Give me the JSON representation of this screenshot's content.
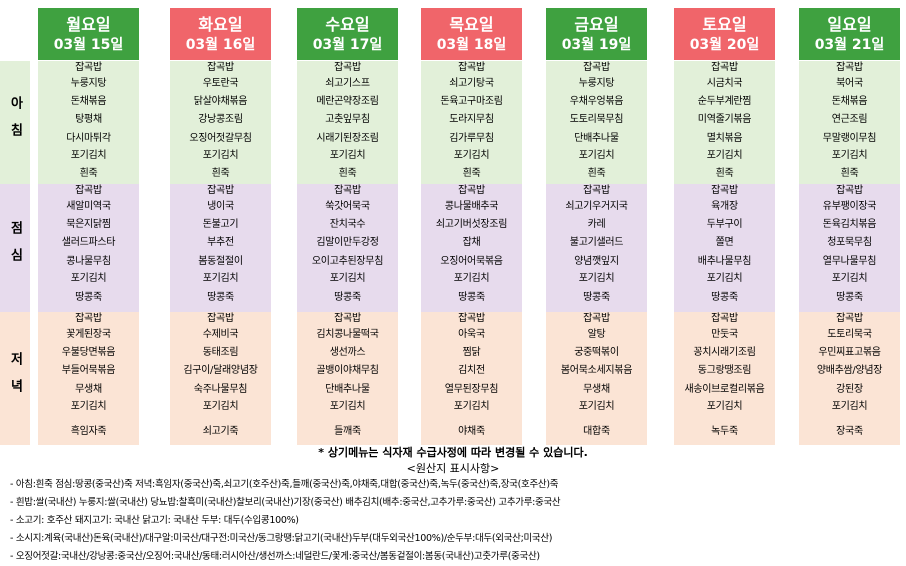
{
  "meal_labels": {
    "breakfast": "아침",
    "lunch": "점심",
    "dinner": "저녁"
  },
  "days": [
    {
      "name": "월요일",
      "date": "03월 15일",
      "header_color": "#3fa140",
      "breakfast": [
        "잡곡밥",
        "누룽지탕",
        "돈채볶음",
        "탕평채",
        "다시마튀각",
        "포기김치",
        "흰죽"
      ],
      "lunch": [
        "잡곡밥",
        "새알미역국",
        "묵은지닭찜",
        "샐러드파스타",
        "콩나물무침",
        "포기김치",
        "땅콩죽"
      ],
      "dinner": [
        "잡곡밥",
        "꽃게된장국",
        "우불당면볶음",
        "부들어묵볶음",
        "무생채",
        "포기김치",
        "흑임자죽"
      ]
    },
    {
      "name": "화요일",
      "date": "03월 16일",
      "header_color": "#f0656a",
      "breakfast": [
        "잡곡밥",
        "우토란국",
        "닭살야채볶음",
        "강낭콩조림",
        "오징어젓갈무침",
        "포기김치",
        "흰죽"
      ],
      "lunch": [
        "잡곡밥",
        "냉이국",
        "돈불고기",
        "부추전",
        "봄동절절이",
        "포기김치",
        "땅콩죽"
      ],
      "dinner": [
        "잡곡밥",
        "수제비국",
        "동태조림",
        "김구이/달래양념장",
        "숙주나물무침",
        "포기김치",
        "쇠고기죽"
      ]
    },
    {
      "name": "수요일",
      "date": "03월 17일",
      "header_color": "#3fa140",
      "breakfast": [
        "잡곡밥",
        "쇠고기스프",
        "메란곤약장조림",
        "고춧잎무침",
        "시래기된장조림",
        "포기김치",
        "흰죽"
      ],
      "lunch": [
        "잡곡밥",
        "쑥갓어묵국",
        "잔치국수",
        "김말이만두강정",
        "오이고추된장무침",
        "포기김치",
        "땅콩죽"
      ],
      "dinner": [
        "잡곡밥",
        "김치콩나물떡국",
        "생선까스",
        "골뱅이야채무침",
        "단배추나물",
        "포기김치",
        "들깨죽"
      ]
    },
    {
      "name": "목요일",
      "date": "03월 18일",
      "header_color": "#f0656a",
      "breakfast": [
        "잡곡밥",
        "쇠고기탕국",
        "돈육고구마조림",
        "도라지무침",
        "김가루무침",
        "포기김치",
        "흰죽"
      ],
      "lunch": [
        "잡곡밥",
        "콩나물배추국",
        "쇠고기버섯장조림",
        "잡채",
        "오징어어묵볶음",
        "포기김치",
        "땅콩죽"
      ],
      "dinner": [
        "잡곡밥",
        "아욱국",
        "찜닭",
        "김치전",
        "열무된장무침",
        "포기김치",
        "야채죽"
      ]
    },
    {
      "name": "금요일",
      "date": "03월 19일",
      "header_color": "#3fa140",
      "breakfast": [
        "잡곡밥",
        "누룽지탕",
        "우채우엉볶음",
        "도토리묵무침",
        "단배추나물",
        "포기김치",
        "흰죽"
      ],
      "lunch": [
        "잡곡밥",
        "쇠고기우거지국",
        "카레",
        "불고기샐러드",
        "양념깻잎지",
        "포기김치",
        "땅콩죽"
      ],
      "dinner": [
        "잡곡밥",
        "알탕",
        "궁중떡볶이",
        "봄어묵소세지볶음",
        "무생채",
        "포기김치",
        "대합죽"
      ]
    },
    {
      "name": "토요일",
      "date": "03월 20일",
      "header_color": "#f0656a",
      "breakfast": [
        "잡곡밥",
        "시금치국",
        "순두부계란찜",
        "미역줄기볶음",
        "멸치볶음",
        "포기김치",
        "흰죽"
      ],
      "lunch": [
        "잡곡밥",
        "육개장",
        "두부구이",
        "쫄면",
        "배추나물무침",
        "포기김치",
        "땅콩죽"
      ],
      "dinner": [
        "잡곡밥",
        "만둣국",
        "꽁치시래기조림",
        "동그랑땡조림",
        "새송이브로컬리볶음",
        "포기김치",
        "녹두죽"
      ]
    },
    {
      "name": "일요일",
      "date": "03월 21일",
      "header_color": "#3fa140",
      "breakfast": [
        "잡곡밥",
        "북어국",
        "돈채볶음",
        "연근조림",
        "무말랭이무침",
        "포기김치",
        "흰죽"
      ],
      "lunch": [
        "잡곡밥",
        "유부팽이장국",
        "돈육김치볶음",
        "청포묵무침",
        "열무나물무침",
        "포기김치",
        "땅콩죽"
      ],
      "dinner": [
        "잡곡밥",
        "도토리묵국",
        "우민찌표고볶음",
        "양배추쌈/양념장",
        "강된장",
        "포기김치",
        "장국죽"
      ]
    }
  ],
  "notice": "* 상기메뉴는 식자재 수급사정에 따라 변경될 수 있습니다.",
  "origin_title": "<원산지 표시사항>",
  "origin_lines": [
    "- 아침:흰죽 점심:땅콩(중국산)죽 저녁:흑임자(중국산)죽,쇠고기(호주산)죽,들깨(중국산)죽,야채죽,대합(중국산)죽,녹두(중국산)죽,장국(호주산)죽",
    "- 흰밥:쌀(국내산) 누룽지:쌀(국내산) 당뇨밥:찰흑미(국내산)찰보리(국내산)기장(중국산) 배추김치(배추:중국산,고추가루:중국산) 고추가루:중국산",
    "- 소고기: 호주산 돼지고기: 국내산 닭고기: 국내산 두부: 대두(수입콩100%)",
    "- 소시지:계육(국내산)돈육(국내산)/대구알:미국산/대구전:미국산/동그랑땡:닭고기(국내산)두부(대두외국산100%)/순두부:대두(외국산;미국산)",
    "- 오징어젓갈:국내산/강낭콩:중국산/오징어:국내산/동태:러시아산/생선까스:네덜란드/꽃게:중국산/봄동겉절이:봄동(국내산)고춧가루(중국산)"
  ]
}
